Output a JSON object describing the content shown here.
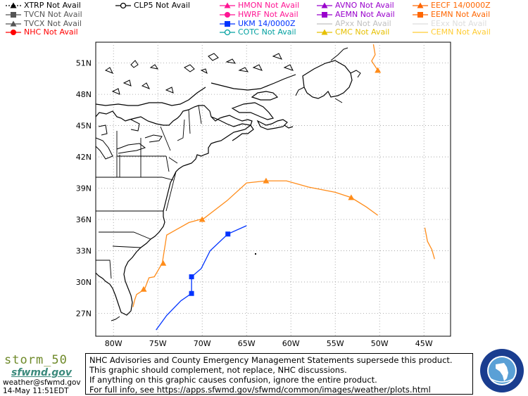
{
  "legend": {
    "col1": [
      {
        "label": "XTRP  Not Avail",
        "color": "#000000",
        "marker": "triangle",
        "line": "dotted"
      },
      {
        "label": "TVCN  Not Avail",
        "color": "#555555",
        "marker": "square",
        "line": "solid"
      },
      {
        "label": "TVCX  Not Avail",
        "color": "#555555",
        "marker": "triangle",
        "line": "solid"
      },
      {
        "label": "NHC  Not Avail",
        "color": "#ff0000",
        "marker": "circle",
        "line": "solid"
      }
    ],
    "col2": [
      {
        "label": "CLP5  Not Avail",
        "color": "#000000",
        "marker": "ring",
        "line": "solid"
      }
    ],
    "col3": [
      {
        "label": "HMON  Not Avail",
        "color": "#ff1493",
        "marker": "triangle",
        "line": "solid"
      },
      {
        "label": "HWRF  Not Avail",
        "color": "#ff1493",
        "marker": "circle",
        "line": "solid"
      },
      {
        "label": "UKM   14/0000Z",
        "color": "#0033ff",
        "marker": "square",
        "line": "solid"
      },
      {
        "label": "COTC  Not Avail",
        "color": "#00a0a0",
        "marker": "ring",
        "line": "solid"
      }
    ],
    "col4": [
      {
        "label": "AVNO  Not Avail",
        "color": "#9900cc",
        "marker": "triangle",
        "line": "solid"
      },
      {
        "label": "AEMN  Not Avail",
        "color": "#9900cc",
        "marker": "square",
        "line": "solid"
      },
      {
        "label": "APxx  Not Avail",
        "color": "#c0c0c0",
        "marker": "none",
        "line": "solid"
      },
      {
        "label": "CMC  Not Avail",
        "color": "#e6c000",
        "marker": "triangle",
        "line": "solid"
      }
    ],
    "col5": [
      {
        "label": "EECF 14/0000Z",
        "color": "#ff6600",
        "marker": "triangle",
        "line": "solid"
      },
      {
        "label": "EEMN  Not Avail",
        "color": "#ff6600",
        "marker": "square",
        "line": "solid"
      },
      {
        "label": "EExx  Not Avail",
        "color": "#dddddd",
        "marker": "none",
        "line": "solid"
      },
      {
        "label": "CEMN  Not Avail",
        "color": "#ffcc33",
        "marker": "none",
        "line": "solid"
      }
    ]
  },
  "map": {
    "lat_labels": [
      "51N",
      "48N",
      "45N",
      "42N",
      "39N",
      "36N",
      "33N",
      "30N",
      "27N"
    ],
    "lon_labels": [
      "80W",
      "75W",
      "70W",
      "65W",
      "60W",
      "55W",
      "50W",
      "45W"
    ],
    "tracks": {
      "eecf": {
        "color": "#ff8c1a",
        "points": [
          [
            -77.8,
            27.6
          ],
          [
            -77.6,
            28.3
          ],
          [
            -77.4,
            28.8
          ],
          [
            -76.5,
            29.3
          ],
          [
            -76.0,
            30.4
          ],
          [
            -75.4,
            30.5
          ],
          [
            -74.5,
            31.8
          ],
          [
            -74.0,
            34.5
          ],
          [
            -71.5,
            35.7
          ],
          [
            -69.8,
            36.1
          ],
          [
            -67.2,
            37.8
          ],
          [
            -65.0,
            39.5
          ],
          [
            -62.8,
            39.7
          ],
          [
            -60.5,
            39.7
          ],
          [
            -58.0,
            39.1
          ],
          [
            -55.0,
            38.6
          ],
          [
            -53.2,
            38.1
          ],
          [
            -51.5,
            37.2
          ],
          [
            -50.2,
            36.4
          ]
        ],
        "markers": [
          [
            -76.6,
            29.3
          ],
          [
            -74.4,
            31.8
          ],
          [
            -70.0,
            36.0
          ],
          [
            -62.8,
            39.7
          ],
          [
            -53.2,
            38.1
          ]
        ]
      },
      "eecf_north": {
        "color": "#ff8c1a",
        "points": [
          [
            -50.7,
            52.8
          ],
          [
            -50.5,
            51.8
          ],
          [
            -50.9,
            51.2
          ],
          [
            -50.2,
            50.3
          ]
        ],
        "markers": [
          [
            -50.2,
            50.3
          ]
        ]
      },
      "eecf_east": {
        "color": "#ff8c1a",
        "points": [
          [
            -44.9,
            35.2
          ],
          [
            -44.6,
            33.9
          ],
          [
            -44.1,
            33.1
          ],
          [
            -43.8,
            32.2
          ]
        ],
        "markers": []
      },
      "ukm": {
        "color": "#0033ff",
        "points": [
          [
            -75.2,
            25.4
          ],
          [
            -74.0,
            26.8
          ],
          [
            -72.4,
            28.2
          ],
          [
            -71.2,
            28.9
          ],
          [
            -71.2,
            30.5
          ],
          [
            -70.1,
            31.3
          ],
          [
            -69.1,
            33.0
          ],
          [
            -67.1,
            34.6
          ],
          [
            -65.0,
            35.4
          ]
        ],
        "markers": [
          [
            -71.2,
            28.9
          ],
          [
            -71.2,
            30.5
          ],
          [
            -67.1,
            34.6
          ]
        ]
      }
    }
  },
  "footer": {
    "lines": [
      "NHC Advisories and County Emergency Management Statements supersede this product.",
      "This graphic should complement, not replace, NHC discussions.",
      "If anything on this graphic causes confusion, ignore the entire product.",
      "For full info, see  https://apps.sfwmd.gov/sfwmd/common/images/weather/plots.html"
    ]
  },
  "branding": {
    "storm_id": "storm_50",
    "agency": "sfwmd.gov",
    "email": "weather@sfwmd.gov",
    "timestamp": "14-May 11:51EDT",
    "seal_text": "SOUTH FLORIDA WATER MANAGEMENT DISTRICT"
  }
}
